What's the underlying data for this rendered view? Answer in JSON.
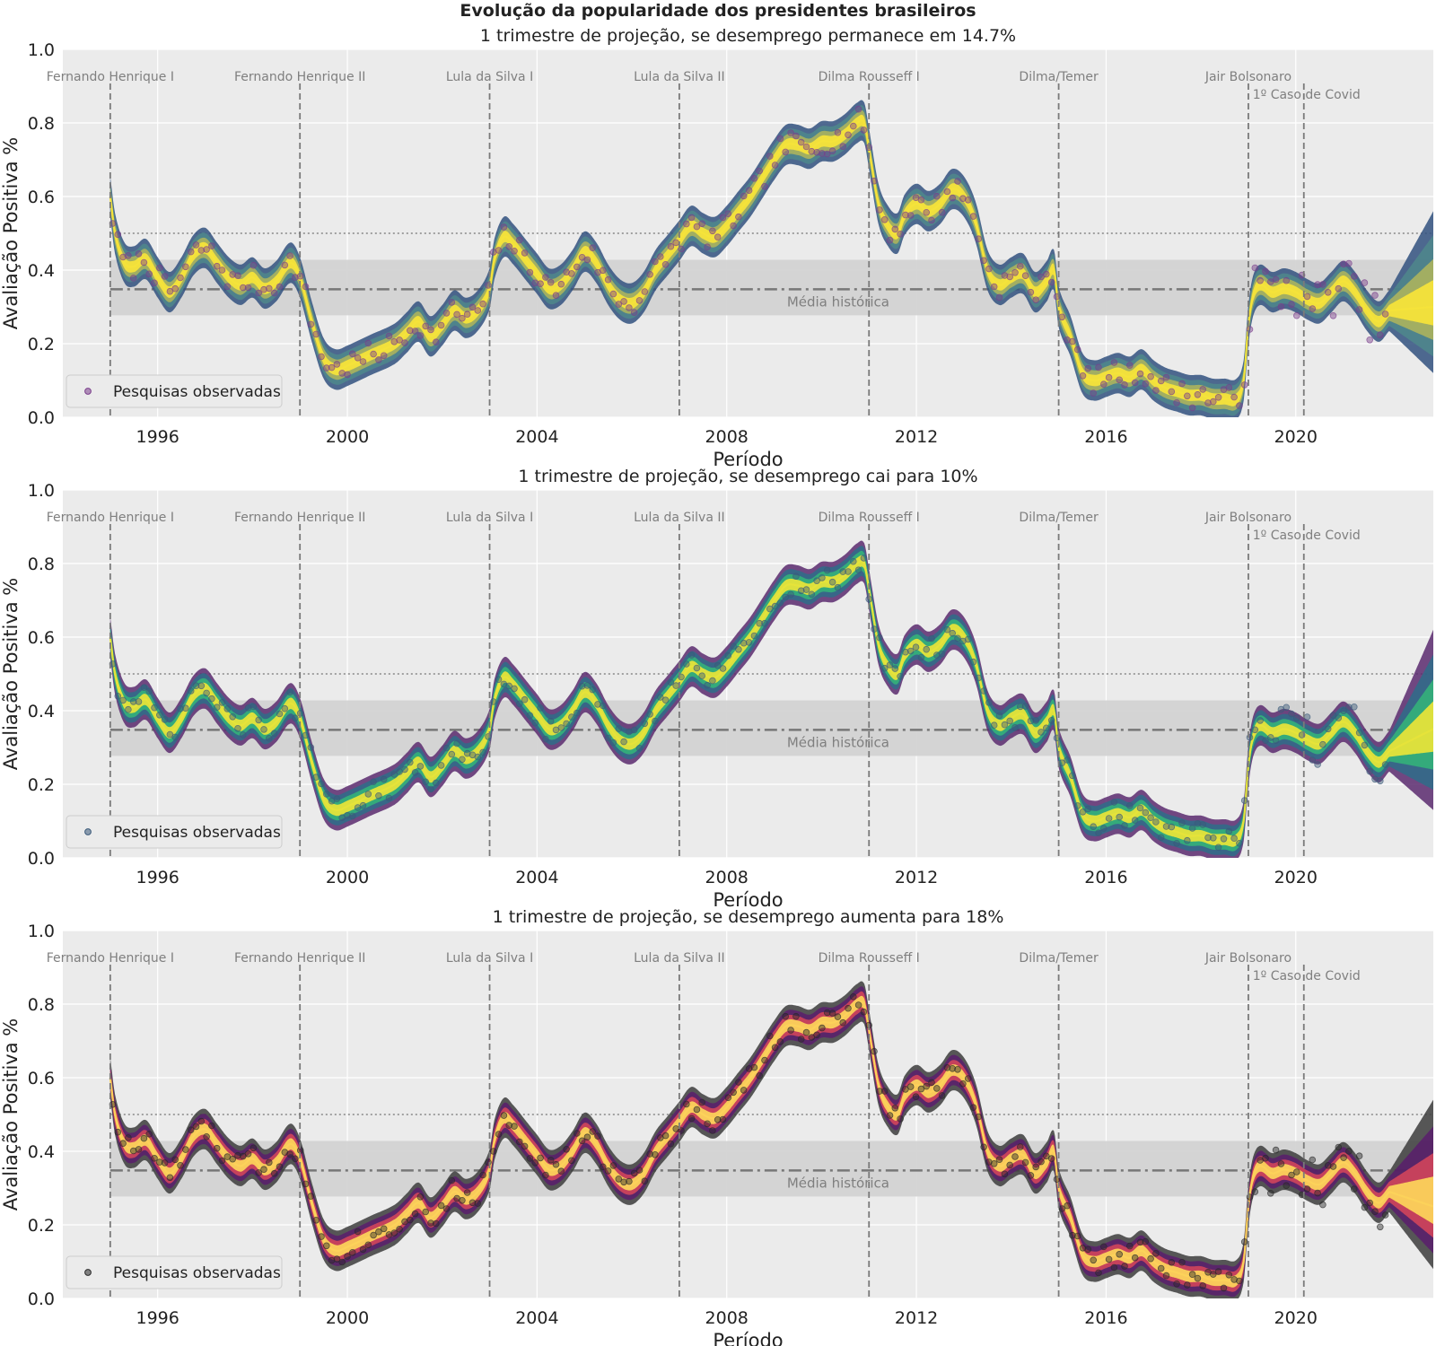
{
  "figure_title": "Evolução da popularidade dos presidentes brasileiros",
  "colors": {
    "panel_bg": "#ebebeb",
    "grid": "#ffffff",
    "mean_band": "#d3d3d3",
    "reference_line": "#777777",
    "annotation_text": "#7f7f7f"
  },
  "chart_data": [
    {
      "type": "line",
      "title": "1 trimestre de projeção, se desemprego permanece em 14.7%",
      "xlabel": "Período",
      "ylabel": "Avaliação Positiva %",
      "xlim": [
        1994.0,
        2022.9
      ],
      "ylim": [
        0.0,
        1.0
      ],
      "xticks": [
        1996,
        2000,
        2004,
        2008,
        2012,
        2016,
        2020
      ],
      "yticks": [
        0.0,
        0.2,
        0.4,
        0.6,
        0.8,
        1.0
      ],
      "grid": true,
      "legend": {
        "label": "Pesquisas observadas",
        "placement": "lower-left"
      },
      "colormap": [
        "#31517f",
        "#4f8a8b",
        "#b2b65a",
        "#f5e33a"
      ],
      "point_color": "#7b3f8c",
      "historical_mean": {
        "label": "Média histórica",
        "value": 0.348,
        "band": [
          0.277,
          0.428
        ]
      },
      "dotted_reference": 0.5,
      "projection_start": 2021.97,
      "events": [
        {
          "label": "Fernando Henrique I",
          "x": 1995.0
        },
        {
          "label": "Fernando Henrique II",
          "x": 1999.0
        },
        {
          "label": "Lula da Silva I",
          "x": 2003.0
        },
        {
          "label": "Lula da Silva II",
          "x": 2007.0
        },
        {
          "label": "Dilma Rousseff I",
          "x": 2011.0
        },
        {
          "label": "Dilma/Temer",
          "x": 2015.0
        },
        {
          "label": "Jair Bolsonaro",
          "x": 2019.0
        },
        {
          "label": "1º Caso de Covid",
          "x": 2020.17
        }
      ],
      "projection_end": {
        "x": 2022.9,
        "low": 0.12,
        "high": 0.56,
        "median": 0.3
      },
      "series": [
        {
          "x": [
            1995.0,
            1995.1,
            1995.3,
            1995.5,
            1995.75,
            1996.0,
            1996.25,
            1996.5,
            1996.75,
            1997.0,
            1997.25,
            1997.5,
            1997.75,
            1998.0,
            1998.25,
            1998.5,
            1998.8,
            1999.0,
            1999.25,
            1999.5,
            1999.75,
            2000.0,
            2000.5,
            2001.0,
            2001.25,
            2001.5,
            2001.75,
            2002.0,
            2002.25,
            2002.5,
            2002.75,
            2003.0,
            2003.1,
            2003.3,
            2003.5,
            2003.75,
            2004.0,
            2004.25,
            2004.5,
            2004.75,
            2005.0,
            2005.25,
            2005.5,
            2005.75,
            2006.0,
            2006.25,
            2006.5,
            2006.75,
            2007.0,
            2007.25,
            2007.5,
            2007.75,
            2008.0,
            2008.25,
            2008.5,
            2008.75,
            2009.0,
            2009.25,
            2009.5,
            2009.75,
            2010.0,
            2010.25,
            2010.5,
            2010.75,
            2010.9,
            2011.0,
            2011.2,
            2011.4,
            2011.6,
            2011.75,
            2012.0,
            2012.25,
            2012.5,
            2012.75,
            2013.0,
            2013.25,
            2013.5,
            2013.75,
            2014.0,
            2014.25,
            2014.5,
            2014.75,
            2014.9,
            2015.0,
            2015.25,
            2015.5,
            2015.75,
            2016.0,
            2016.25,
            2016.5,
            2016.75,
            2017.0,
            2017.25,
            2017.5,
            2017.75,
            2018.0,
            2018.25,
            2018.5,
            2018.75,
            2018.9,
            2019.0,
            2019.1,
            2019.25,
            2019.5,
            2019.75,
            2020.0,
            2020.25,
            2020.5,
            2020.75,
            2021.0,
            2021.25,
            2021.5,
            2021.75,
            2021.97
          ],
          "y": [
            0.6,
            0.5,
            0.42,
            0.41,
            0.43,
            0.38,
            0.34,
            0.38,
            0.44,
            0.46,
            0.42,
            0.38,
            0.36,
            0.38,
            0.35,
            0.37,
            0.42,
            0.38,
            0.26,
            0.16,
            0.13,
            0.14,
            0.17,
            0.2,
            0.23,
            0.26,
            0.22,
            0.25,
            0.29,
            0.27,
            0.29,
            0.35,
            0.43,
            0.49,
            0.47,
            0.43,
            0.39,
            0.35,
            0.36,
            0.4,
            0.45,
            0.42,
            0.36,
            0.32,
            0.31,
            0.34,
            0.4,
            0.44,
            0.48,
            0.52,
            0.5,
            0.49,
            0.52,
            0.56,
            0.6,
            0.65,
            0.7,
            0.74,
            0.74,
            0.73,
            0.75,
            0.75,
            0.77,
            0.8,
            0.8,
            0.73,
            0.58,
            0.52,
            0.5,
            0.55,
            0.58,
            0.56,
            0.58,
            0.62,
            0.6,
            0.53,
            0.4,
            0.36,
            0.38,
            0.39,
            0.34,
            0.37,
            0.4,
            0.3,
            0.22,
            0.12,
            0.1,
            0.11,
            0.12,
            0.11,
            0.13,
            0.1,
            0.08,
            0.07,
            0.06,
            0.06,
            0.05,
            0.05,
            0.05,
            0.1,
            0.25,
            0.33,
            0.36,
            0.34,
            0.35,
            0.34,
            0.32,
            0.31,
            0.34,
            0.37,
            0.34,
            0.29,
            0.26,
            0.29
          ]
        }
      ]
    },
    {
      "type": "line",
      "title": "1 trimestre de projeção, se desemprego cai para 10%",
      "xlabel": "Período",
      "ylabel": "Avaliação Positiva %",
      "xlim": [
        1994.0,
        2022.9
      ],
      "ylim": [
        0.0,
        1.0
      ],
      "xticks": [
        1996,
        2000,
        2004,
        2008,
        2012,
        2016,
        2020
      ],
      "yticks": [
        0.0,
        0.2,
        0.4,
        0.6,
        0.8,
        1.0
      ],
      "grid": true,
      "legend": {
        "label": "Pesquisas observadas",
        "placement": "lower-left"
      },
      "colormap": [
        "#5b2a6e",
        "#2a6f8a",
        "#34b679",
        "#e6e33a"
      ],
      "point_color": "#3b5a7a",
      "historical_mean": {
        "label": "Média histórica",
        "value": 0.348,
        "band": [
          0.277,
          0.428
        ]
      },
      "dotted_reference": 0.5,
      "projection_start": 2021.97,
      "events": [
        {
          "label": "Fernando Henrique I",
          "x": 1995.0
        },
        {
          "label": "Fernando Henrique II",
          "x": 1999.0
        },
        {
          "label": "Lula da Silva I",
          "x": 2003.0
        },
        {
          "label": "Lula da Silva II",
          "x": 2007.0
        },
        {
          "label": "Dilma Rousseff I",
          "x": 2011.0
        },
        {
          "label": "Dilma/Temer",
          "x": 2015.0
        },
        {
          "label": "Jair Bolsonaro",
          "x": 2019.0
        },
        {
          "label": "1º Caso de Covid",
          "x": 2020.17
        }
      ],
      "projection_end": {
        "x": 2022.9,
        "low": 0.13,
        "high": 0.62,
        "median": 0.35
      },
      "series": [
        {
          "x": [
            1995.0,
            1995.1,
            1995.3,
            1995.5,
            1995.75,
            1996.0,
            1996.25,
            1996.5,
            1996.75,
            1997.0,
            1997.25,
            1997.5,
            1997.75,
            1998.0,
            1998.25,
            1998.5,
            1998.8,
            1999.0,
            1999.25,
            1999.5,
            1999.75,
            2000.0,
            2000.5,
            2001.0,
            2001.25,
            2001.5,
            2001.75,
            2002.0,
            2002.25,
            2002.5,
            2002.75,
            2003.0,
            2003.1,
            2003.3,
            2003.5,
            2003.75,
            2004.0,
            2004.25,
            2004.5,
            2004.75,
            2005.0,
            2005.25,
            2005.5,
            2005.75,
            2006.0,
            2006.25,
            2006.5,
            2006.75,
            2007.0,
            2007.25,
            2007.5,
            2007.75,
            2008.0,
            2008.25,
            2008.5,
            2008.75,
            2009.0,
            2009.25,
            2009.5,
            2009.75,
            2010.0,
            2010.25,
            2010.5,
            2010.75,
            2010.9,
            2011.0,
            2011.2,
            2011.4,
            2011.6,
            2011.75,
            2012.0,
            2012.25,
            2012.5,
            2012.75,
            2013.0,
            2013.25,
            2013.5,
            2013.75,
            2014.0,
            2014.25,
            2014.5,
            2014.75,
            2014.9,
            2015.0,
            2015.25,
            2015.5,
            2015.75,
            2016.0,
            2016.25,
            2016.5,
            2016.75,
            2017.0,
            2017.25,
            2017.5,
            2017.75,
            2018.0,
            2018.25,
            2018.5,
            2018.75,
            2018.9,
            2019.0,
            2019.1,
            2019.25,
            2019.5,
            2019.75,
            2020.0,
            2020.25,
            2020.5,
            2020.75,
            2021.0,
            2021.25,
            2021.5,
            2021.75,
            2021.97
          ],
          "y": [
            0.6,
            0.5,
            0.42,
            0.41,
            0.43,
            0.38,
            0.34,
            0.38,
            0.44,
            0.46,
            0.42,
            0.38,
            0.36,
            0.38,
            0.35,
            0.37,
            0.42,
            0.38,
            0.26,
            0.16,
            0.13,
            0.14,
            0.17,
            0.2,
            0.23,
            0.26,
            0.22,
            0.25,
            0.29,
            0.27,
            0.29,
            0.35,
            0.43,
            0.49,
            0.47,
            0.43,
            0.39,
            0.35,
            0.36,
            0.4,
            0.45,
            0.42,
            0.36,
            0.32,
            0.31,
            0.34,
            0.4,
            0.44,
            0.48,
            0.52,
            0.5,
            0.49,
            0.52,
            0.56,
            0.6,
            0.65,
            0.7,
            0.74,
            0.74,
            0.73,
            0.75,
            0.75,
            0.77,
            0.8,
            0.8,
            0.73,
            0.58,
            0.52,
            0.5,
            0.55,
            0.58,
            0.56,
            0.58,
            0.62,
            0.6,
            0.53,
            0.4,
            0.36,
            0.38,
            0.39,
            0.34,
            0.37,
            0.4,
            0.3,
            0.22,
            0.12,
            0.1,
            0.11,
            0.12,
            0.11,
            0.13,
            0.1,
            0.08,
            0.07,
            0.06,
            0.06,
            0.05,
            0.05,
            0.05,
            0.1,
            0.25,
            0.33,
            0.36,
            0.34,
            0.35,
            0.34,
            0.32,
            0.31,
            0.34,
            0.37,
            0.34,
            0.29,
            0.26,
            0.29
          ]
        }
      ]
    },
    {
      "type": "line",
      "title": "1 trimestre de projeção, se desemprego aumenta para 18%",
      "xlabel": "Período",
      "ylabel": "Avaliação Positiva %",
      "xlim": [
        1994.0,
        2022.9
      ],
      "ylim": [
        0.0,
        1.0
      ],
      "xticks": [
        1996,
        2000,
        2004,
        2008,
        2012,
        2016,
        2020
      ],
      "yticks": [
        0.0,
        0.2,
        0.4,
        0.6,
        0.8,
        1.0
      ],
      "grid": true,
      "legend": {
        "label": "Pesquisas observadas",
        "placement": "lower-left"
      },
      "colormap": [
        "#3c3c3c",
        "#5a1a6e",
        "#d8465a",
        "#fcd25a"
      ],
      "point_color": "#2a2a2a",
      "historical_mean": {
        "label": "Média histórica",
        "value": 0.348,
        "band": [
          0.277,
          0.428
        ]
      },
      "dotted_reference": 0.5,
      "projection_start": 2021.97,
      "events": [
        {
          "label": "Fernando Henrique I",
          "x": 1995.0
        },
        {
          "label": "Fernando Henrique II",
          "x": 1999.0
        },
        {
          "label": "Lula da Silva I",
          "x": 2003.0
        },
        {
          "label": "Lula da Silva II",
          "x": 2007.0
        },
        {
          "label": "Dilma Rousseff I",
          "x": 2011.0
        },
        {
          "label": "Dilma/Temer",
          "x": 2015.0
        },
        {
          "label": "Jair Bolsonaro",
          "x": 2019.0
        },
        {
          "label": "1º Caso de Covid",
          "x": 2020.17
        }
      ],
      "projection_end": {
        "x": 2022.9,
        "low": 0.08,
        "high": 0.54,
        "median": 0.25
      },
      "series": [
        {
          "x": [
            1995.0,
            1995.1,
            1995.3,
            1995.5,
            1995.75,
            1996.0,
            1996.25,
            1996.5,
            1996.75,
            1997.0,
            1997.25,
            1997.5,
            1997.75,
            1998.0,
            1998.25,
            1998.5,
            1998.8,
            1999.0,
            1999.25,
            1999.5,
            1999.75,
            2000.0,
            2000.5,
            2001.0,
            2001.25,
            2001.5,
            2001.75,
            2002.0,
            2002.25,
            2002.5,
            2002.75,
            2003.0,
            2003.1,
            2003.3,
            2003.5,
            2003.75,
            2004.0,
            2004.25,
            2004.5,
            2004.75,
            2005.0,
            2005.25,
            2005.5,
            2005.75,
            2006.0,
            2006.25,
            2006.5,
            2006.75,
            2007.0,
            2007.25,
            2007.5,
            2007.75,
            2008.0,
            2008.25,
            2008.5,
            2008.75,
            2009.0,
            2009.25,
            2009.5,
            2009.75,
            2010.0,
            2010.25,
            2010.5,
            2010.75,
            2010.9,
            2011.0,
            2011.2,
            2011.4,
            2011.6,
            2011.75,
            2012.0,
            2012.25,
            2012.5,
            2012.75,
            2013.0,
            2013.25,
            2013.5,
            2013.75,
            2014.0,
            2014.25,
            2014.5,
            2014.75,
            2014.9,
            2015.0,
            2015.25,
            2015.5,
            2015.75,
            2016.0,
            2016.25,
            2016.5,
            2016.75,
            2017.0,
            2017.25,
            2017.5,
            2017.75,
            2018.0,
            2018.25,
            2018.5,
            2018.75,
            2018.9,
            2019.0,
            2019.1,
            2019.25,
            2019.5,
            2019.75,
            2020.0,
            2020.25,
            2020.5,
            2020.75,
            2021.0,
            2021.25,
            2021.5,
            2021.75,
            2021.97
          ],
          "y": [
            0.6,
            0.5,
            0.42,
            0.41,
            0.43,
            0.38,
            0.34,
            0.38,
            0.44,
            0.46,
            0.42,
            0.38,
            0.36,
            0.38,
            0.35,
            0.37,
            0.42,
            0.38,
            0.26,
            0.16,
            0.13,
            0.14,
            0.17,
            0.2,
            0.23,
            0.26,
            0.22,
            0.25,
            0.29,
            0.27,
            0.29,
            0.35,
            0.43,
            0.49,
            0.47,
            0.43,
            0.39,
            0.35,
            0.36,
            0.4,
            0.45,
            0.42,
            0.36,
            0.32,
            0.31,
            0.34,
            0.4,
            0.44,
            0.48,
            0.52,
            0.5,
            0.49,
            0.52,
            0.56,
            0.6,
            0.65,
            0.7,
            0.74,
            0.74,
            0.73,
            0.75,
            0.75,
            0.77,
            0.8,
            0.8,
            0.73,
            0.58,
            0.52,
            0.5,
            0.55,
            0.58,
            0.56,
            0.58,
            0.62,
            0.6,
            0.53,
            0.4,
            0.36,
            0.38,
            0.39,
            0.34,
            0.37,
            0.4,
            0.3,
            0.22,
            0.12,
            0.1,
            0.11,
            0.12,
            0.11,
            0.13,
            0.1,
            0.08,
            0.07,
            0.06,
            0.06,
            0.05,
            0.05,
            0.05,
            0.1,
            0.25,
            0.33,
            0.36,
            0.34,
            0.35,
            0.34,
            0.32,
            0.31,
            0.34,
            0.37,
            0.34,
            0.29,
            0.26,
            0.29
          ]
        }
      ]
    }
  ]
}
